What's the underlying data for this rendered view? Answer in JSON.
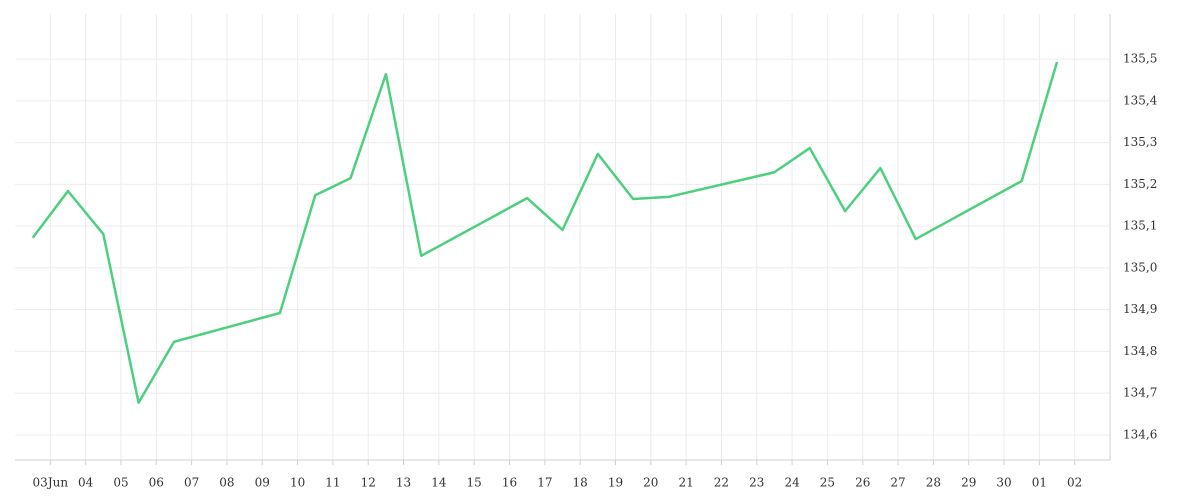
{
  "chart_data": {
    "type": "line",
    "series": [
      {
        "color": "#4cd07d",
        "x": [
          -1.5,
          -0.5,
          0.5,
          1.5,
          2.5,
          5.5,
          6.5,
          7.5,
          8.5,
          9.5,
          12.5,
          13.5,
          14.5,
          15.5,
          16.5,
          19.5,
          20.5,
          21.5,
          22.5,
          23.5,
          26.5,
          27.5
        ],
        "values": [
          135.072,
          135.184,
          135.081,
          134.677,
          134.823,
          134.892,
          135.174,
          135.215,
          135.464,
          135.029,
          135.167,
          135.091,
          135.273,
          135.165,
          135.17,
          135.229,
          135.287,
          135.136,
          135.239,
          135.069,
          135.208,
          135.493
        ]
      }
    ],
    "xlim": [
      -2,
      29
    ],
    "xticks": [
      {
        "value": -1,
        "label": "03Jun"
      },
      {
        "value": 0,
        "label": "04"
      },
      {
        "value": 1,
        "label": "05"
      },
      {
        "value": 2,
        "label": "06"
      },
      {
        "value": 3,
        "label": "07"
      },
      {
        "value": 4,
        "label": "08"
      },
      {
        "value": 5,
        "label": "09"
      },
      {
        "value": 6,
        "label": "10"
      },
      {
        "value": 7,
        "label": "11"
      },
      {
        "value": 8,
        "label": "12"
      },
      {
        "value": 9,
        "label": "13"
      },
      {
        "value": 10,
        "label": "14"
      },
      {
        "value": 11,
        "label": "15"
      },
      {
        "value": 12,
        "label": "16"
      },
      {
        "value": 13,
        "label": "17"
      },
      {
        "value": 14,
        "label": "18"
      },
      {
        "value": 15,
        "label": "19"
      },
      {
        "value": 16,
        "label": "20"
      },
      {
        "value": 17,
        "label": "21"
      },
      {
        "value": 18,
        "label": "22"
      },
      {
        "value": 19,
        "label": "23"
      },
      {
        "value": 20,
        "label": "24"
      },
      {
        "value": 21,
        "label": "25"
      },
      {
        "value": 22,
        "label": "26"
      },
      {
        "value": 23,
        "label": "27"
      },
      {
        "value": 24,
        "label": "28"
      },
      {
        "value": 25,
        "label": "29"
      },
      {
        "value": 26,
        "label": "30"
      },
      {
        "value": 27,
        "label": "01"
      },
      {
        "value": 28,
        "label": "02"
      }
    ],
    "ylim": [
      134.54,
      135.608
    ],
    "yticks": [
      {
        "value": 134.6,
        "label": "134,6"
      },
      {
        "value": 134.7,
        "label": "134,7"
      },
      {
        "value": 134.8,
        "label": "134,8"
      },
      {
        "value": 134.9,
        "label": "134,9"
      },
      {
        "value": 135.0,
        "label": "135,0"
      },
      {
        "value": 135.1,
        "label": "135,1"
      },
      {
        "value": 135.2,
        "label": "135,2"
      },
      {
        "value": 135.3,
        "label": "135,3"
      },
      {
        "value": 135.4,
        "label": "135,4"
      },
      {
        "value": 135.5,
        "label": "135,5"
      }
    ],
    "grid": true
  }
}
